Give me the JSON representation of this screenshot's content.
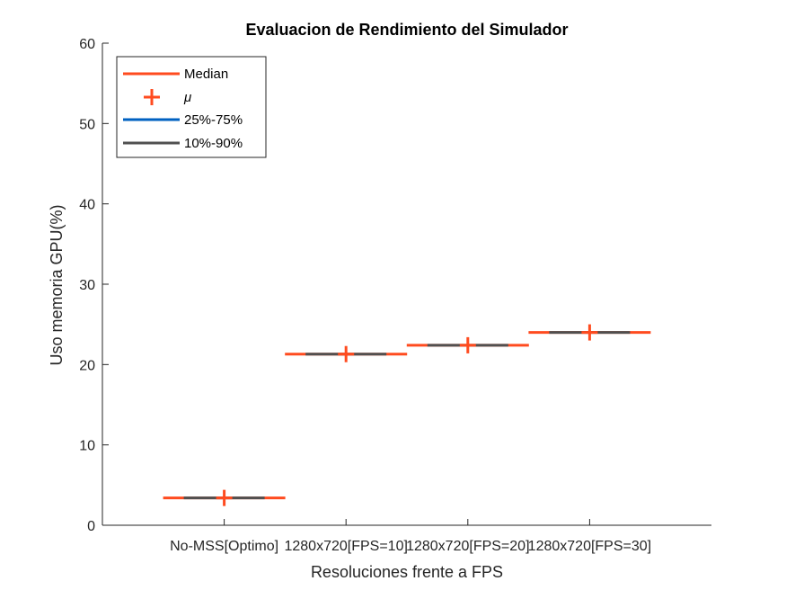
{
  "chart_data": {
    "type": "box",
    "title": "Evaluacion de Rendimiento del Simulador",
    "xlabel": "Resoluciones frente a FPS",
    "ylabel": "Uso memoria GPU(%)",
    "ylim": [
      0,
      60
    ],
    "yticks": [
      0,
      10,
      20,
      30,
      40,
      50,
      60
    ],
    "categories": [
      "No-MSS[Optimo]",
      "1280x720[FPS=10]",
      "1280x720[FPS=20]",
      "1280x720[FPS=30]"
    ],
    "median": [
      3.4,
      21.3,
      22.4,
      24.0
    ],
    "mean": [
      3.4,
      21.3,
      22.4,
      24.0
    ],
    "p25_p75": [
      [
        3.4,
        3.4
      ],
      [
        21.3,
        21.3
      ],
      [
        22.4,
        22.4
      ],
      [
        24.0,
        24.0
      ]
    ],
    "p10_p90": [
      [
        3.4,
        3.4
      ],
      [
        21.3,
        21.3
      ],
      [
        22.4,
        22.4
      ],
      [
        24.0,
        24.0
      ]
    ],
    "legend": {
      "placement": "top-left",
      "entries": [
        {
          "label": "Median",
          "color": "#FF4B1F"
        },
        {
          "label": "μ",
          "color": "#FF4B1F"
        },
        {
          "label": "25%-75%",
          "color": "#0061C1"
        },
        {
          "label": "10%-90%",
          "color": "#505050"
        }
      ]
    },
    "colors": {
      "median": "#FF4B1F",
      "mean": "#FF4B1F",
      "iqr": "#0061C1",
      "range": "#505050",
      "axis": "#262626"
    },
    "grid": false
  }
}
